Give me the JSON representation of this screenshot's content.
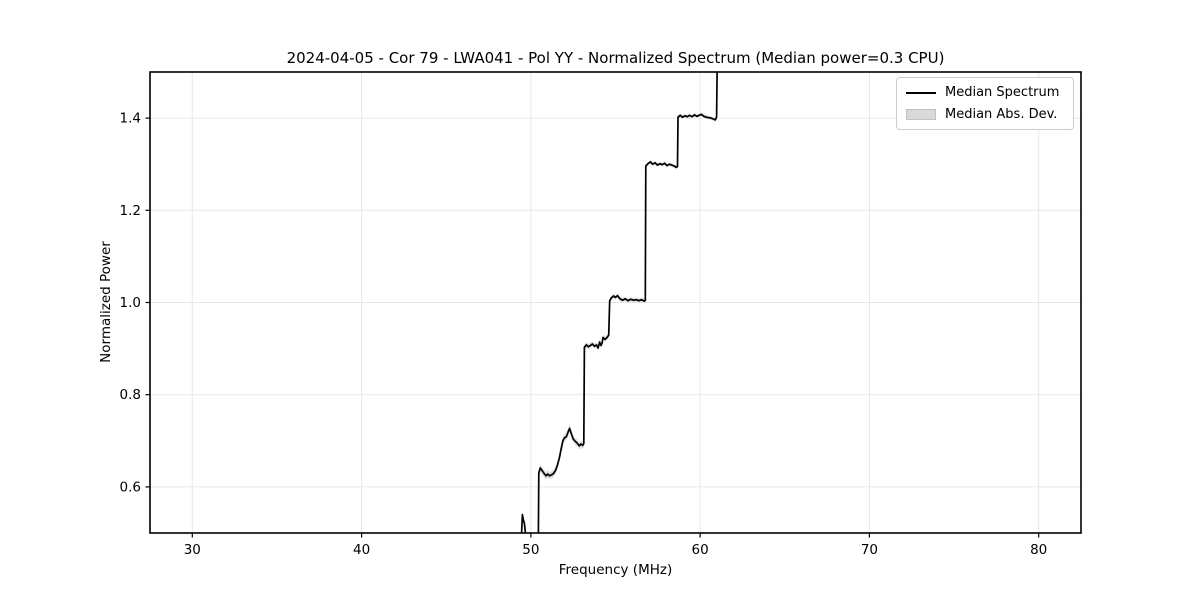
{
  "chart_data": {
    "type": "line",
    "title": "2024-04-05 - Cor 79 - LWA041 - Pol YY - Normalized Spectrum (Median power=0.3 CPU)",
    "xlabel": "Frequency (MHz)",
    "ylabel": "Normalized Power",
    "xlim": [
      27.5,
      82.5
    ],
    "ylim": [
      0.5,
      1.5
    ],
    "xticks": [
      30,
      40,
      50,
      60,
      70,
      80
    ],
    "yticks": [
      0.6,
      0.8,
      1.0,
      1.2,
      1.4
    ],
    "grid": true,
    "grid_color": "#e7e7e7",
    "axis_color": "#000000",
    "legend": {
      "position": "upper right",
      "items": [
        {
          "label": "Median Spectrum",
          "type": "line",
          "color": "#000000"
        },
        {
          "label": "Median Abs. Dev.",
          "type": "patch",
          "color": "#d9d9d9"
        }
      ]
    },
    "series": [
      {
        "name": "Median Spectrum",
        "color": "#000000",
        "linewidth": 1.7,
        "points_format": "[frequency_mhz, normalized_power, median_abs_dev]",
        "points": [
          [
            49.38,
            0.47,
            0.008
          ],
          [
            49.44,
            0.49,
            0.008
          ],
          [
            49.5,
            0.54,
            0.008
          ],
          [
            49.56,
            0.528,
            0.008
          ],
          [
            49.62,
            0.521,
            0.008
          ],
          [
            49.7,
            0.492,
            0.008
          ],
          [
            49.78,
            0.468,
            0.008
          ],
          [
            49.95,
            0.462,
            0.008
          ],
          [
            50.15,
            0.464,
            0.008
          ],
          [
            50.32,
            0.468,
            0.008
          ],
          [
            50.44,
            0.472,
            0.009
          ],
          [
            50.47,
            0.63,
            0.009
          ],
          [
            50.55,
            0.641,
            0.008
          ],
          [
            50.65,
            0.636,
            0.008
          ],
          [
            50.78,
            0.629,
            0.009
          ],
          [
            50.9,
            0.624,
            0.009
          ],
          [
            51.0,
            0.628,
            0.008
          ],
          [
            51.1,
            0.624,
            0.008
          ],
          [
            51.22,
            0.626,
            0.008
          ],
          [
            51.34,
            0.629,
            0.008
          ],
          [
            51.46,
            0.636,
            0.008
          ],
          [
            51.55,
            0.645,
            0.008
          ],
          [
            51.68,
            0.662,
            0.009
          ],
          [
            51.8,
            0.684,
            0.009
          ],
          [
            51.9,
            0.701,
            0.009
          ],
          [
            52.0,
            0.707,
            0.008
          ],
          [
            52.1,
            0.709,
            0.008
          ],
          [
            52.2,
            0.719,
            0.009
          ],
          [
            52.29,
            0.727,
            0.01
          ],
          [
            52.38,
            0.716,
            0.009
          ],
          [
            52.5,
            0.704,
            0.008
          ],
          [
            52.62,
            0.699,
            0.008
          ],
          [
            52.74,
            0.695,
            0.008
          ],
          [
            52.86,
            0.689,
            0.008
          ],
          [
            52.96,
            0.693,
            0.008
          ],
          [
            53.06,
            0.69,
            0.008
          ],
          [
            53.13,
            0.694,
            0.008
          ],
          [
            53.16,
            0.903,
            0.007
          ],
          [
            53.28,
            0.908,
            0.007
          ],
          [
            53.4,
            0.904,
            0.006
          ],
          [
            53.52,
            0.907,
            0.006
          ],
          [
            53.64,
            0.91,
            0.006
          ],
          [
            53.76,
            0.905,
            0.006
          ],
          [
            53.88,
            0.908,
            0.006
          ],
          [
            53.97,
            0.901,
            0.006
          ],
          [
            54.06,
            0.914,
            0.006
          ],
          [
            54.14,
            0.907,
            0.006
          ],
          [
            54.2,
            0.911,
            0.006
          ],
          [
            54.26,
            0.924,
            0.006
          ],
          [
            54.38,
            0.92,
            0.006
          ],
          [
            54.5,
            0.924,
            0.006
          ],
          [
            54.6,
            0.929,
            0.006
          ],
          [
            54.66,
            1.004,
            0.005
          ],
          [
            54.76,
            1.01,
            0.005
          ],
          [
            54.88,
            1.014,
            0.005
          ],
          [
            55.0,
            1.011,
            0.005
          ],
          [
            55.12,
            1.015,
            0.005
          ],
          [
            55.26,
            1.008,
            0.005
          ],
          [
            55.42,
            1.005,
            0.005
          ],
          [
            55.58,
            1.008,
            0.005
          ],
          [
            55.74,
            1.004,
            0.005
          ],
          [
            55.9,
            1.007,
            0.005
          ],
          [
            56.06,
            1.005,
            0.005
          ],
          [
            56.22,
            1.006,
            0.005
          ],
          [
            56.38,
            1.004,
            0.005
          ],
          [
            56.54,
            1.006,
            0.005
          ],
          [
            56.7,
            1.003,
            0.005
          ],
          [
            56.76,
            1.005,
            0.005
          ],
          [
            56.79,
            1.296,
            0.004
          ],
          [
            56.92,
            1.301,
            0.004
          ],
          [
            57.06,
            1.305,
            0.004
          ],
          [
            57.2,
            1.3,
            0.004
          ],
          [
            57.34,
            1.303,
            0.004
          ],
          [
            57.48,
            1.298,
            0.004
          ],
          [
            57.62,
            1.301,
            0.004
          ],
          [
            57.76,
            1.299,
            0.004
          ],
          [
            57.9,
            1.302,
            0.004
          ],
          [
            58.04,
            1.297,
            0.004
          ],
          [
            58.18,
            1.3,
            0.004
          ],
          [
            58.32,
            1.298,
            0.004
          ],
          [
            58.46,
            1.296,
            0.004
          ],
          [
            58.6,
            1.293,
            0.004
          ],
          [
            58.66,
            1.295,
            0.004
          ],
          [
            58.69,
            1.402,
            0.004
          ],
          [
            58.82,
            1.406,
            0.004
          ],
          [
            58.96,
            1.402,
            0.004
          ],
          [
            59.1,
            1.405,
            0.004
          ],
          [
            59.24,
            1.403,
            0.004
          ],
          [
            59.38,
            1.406,
            0.004
          ],
          [
            59.52,
            1.403,
            0.004
          ],
          [
            59.66,
            1.407,
            0.004
          ],
          [
            59.8,
            1.404,
            0.004
          ],
          [
            59.94,
            1.406,
            0.004
          ],
          [
            60.08,
            1.408,
            0.004
          ],
          [
            60.22,
            1.404,
            0.004
          ],
          [
            60.36,
            1.402,
            0.004
          ],
          [
            60.5,
            1.401,
            0.004
          ],
          [
            60.64,
            1.4,
            0.004
          ],
          [
            60.78,
            1.398,
            0.004
          ],
          [
            60.9,
            1.396,
            0.004
          ],
          [
            60.97,
            1.403,
            0.005
          ],
          [
            61.02,
            1.56,
            0.006
          ]
        ]
      }
    ],
    "band_color": "#c4c4c4",
    "band_opacity": 0.55
  }
}
